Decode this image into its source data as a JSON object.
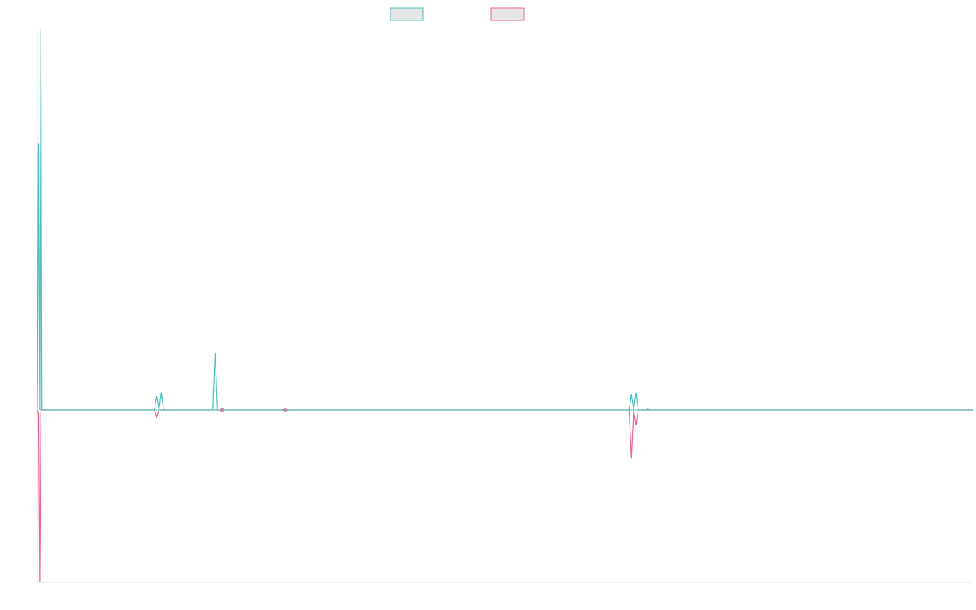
{
  "chart_data": {
    "type": "line",
    "title": "",
    "xlabel": "",
    "ylabel": "",
    "legend": {
      "placement": "top-center",
      "show_labels": false
    },
    "grid": false,
    "xlim": [
      0,
      400
    ],
    "ylim": [
      -100,
      220
    ],
    "series": [
      {
        "color": "#4bbfbd",
        "fill": "#e6e6e6",
        "points": [
          [
            0,
            0
          ],
          [
            0.5,
            154
          ],
          [
            1,
            0
          ],
          [
            1.5,
            220
          ],
          [
            2,
            0
          ],
          [
            50,
            0
          ],
          [
            51,
            8
          ],
          [
            52,
            0
          ],
          [
            53,
            10
          ],
          [
            54,
            0
          ],
          [
            75,
            0
          ],
          [
            76,
            33
          ],
          [
            77,
            0
          ],
          [
            253,
            0
          ],
          [
            254,
            9
          ],
          [
            255,
            0
          ],
          [
            256,
            10
          ],
          [
            257,
            0
          ],
          [
            260,
            0
          ],
          [
            261,
            0.5
          ],
          [
            262,
            0
          ],
          [
            400,
            0
          ]
        ]
      },
      {
        "color": "#f0638a",
        "fill": "#e6e6e6",
        "points": [
          [
            0,
            0
          ],
          [
            0.5,
            -2
          ],
          [
            1,
            -100
          ],
          [
            1.5,
            0
          ],
          [
            2,
            0
          ],
          [
            50,
            0
          ],
          [
            51,
            -4
          ],
          [
            52,
            0
          ],
          [
            78,
            0
          ],
          [
            79,
            0.8
          ],
          [
            80,
            0
          ],
          [
            79,
            -0.8
          ],
          [
            78,
            0
          ],
          [
            105,
            0
          ],
          [
            106,
            0.8
          ],
          [
            107,
            0
          ],
          [
            106,
            -0.8
          ],
          [
            105,
            0
          ],
          [
            253,
            0
          ],
          [
            254,
            -28
          ],
          [
            255,
            0
          ],
          [
            256,
            -9
          ],
          [
            257,
            0
          ],
          [
            400,
            0
          ]
        ]
      }
    ]
  }
}
